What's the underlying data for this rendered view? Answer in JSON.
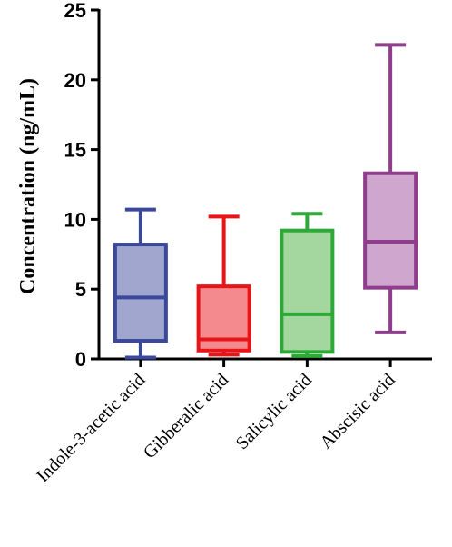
{
  "chart_data": {
    "type": "boxplot",
    "ylabel": "Concentration (ng/mL)",
    "ylim": [
      0,
      25
    ],
    "yticks": [
      0,
      5,
      10,
      15,
      20,
      25
    ],
    "categories": [
      "Indole-3-acetic acid",
      "Gibberalic acid",
      "Salicylic acid",
      "Abscisic acid"
    ],
    "boxes": [
      {
        "category": "Indole-3-acetic acid",
        "min": 0.1,
        "q1": 1.3,
        "median": 4.4,
        "q3": 8.2,
        "max": 10.7,
        "color": "#3a479b",
        "fill": "#a1a6cf"
      },
      {
        "category": "Gibberalic acid",
        "min": 0.3,
        "q1": 0.6,
        "median": 1.4,
        "q3": 5.2,
        "max": 10.2,
        "color": "#e81418",
        "fill": "#f48a8d"
      },
      {
        "category": "Salicylic acid",
        "min": 0.2,
        "q1": 0.5,
        "median": 3.2,
        "q3": 9.2,
        "max": 10.4,
        "color": "#2ea836",
        "fill": "#a4d6a0"
      },
      {
        "category": "Abscisic acid",
        "min": 1.9,
        "q1": 5.1,
        "median": 8.4,
        "q3": 13.3,
        "max": 22.5,
        "color": "#8f3d8c",
        "fill": "#cfa6cd"
      }
    ]
  }
}
